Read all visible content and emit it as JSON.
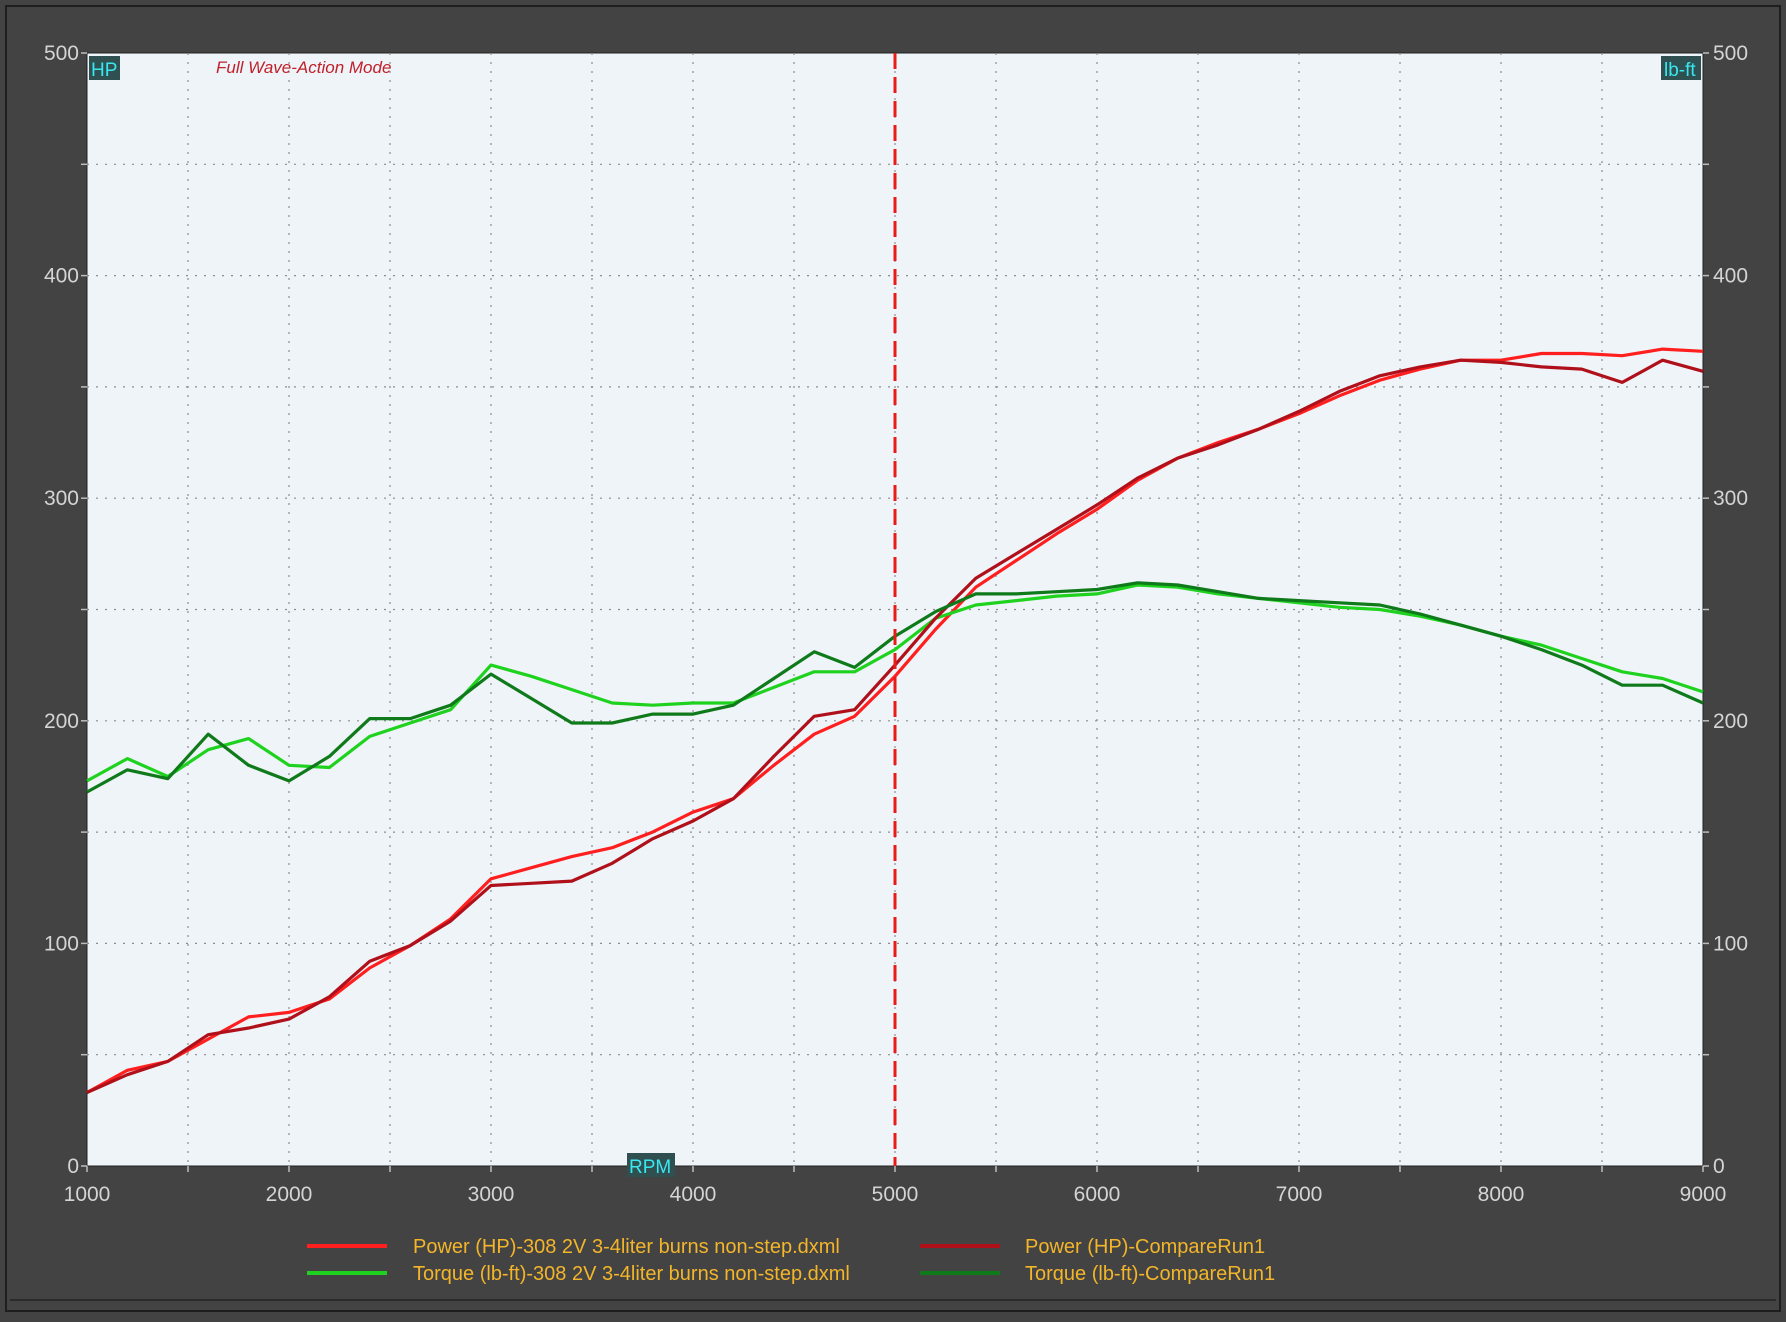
{
  "colors": {
    "background": "#434343",
    "plot_background": "#eff4f9",
    "axis_text": "#d4d4d4",
    "grid": "#8c8c8c",
    "mode_text": "#c0202a",
    "unit_box": "#2f4f50",
    "unit_text": "#39e7f0",
    "legend_text": "#f3b52a",
    "cursor": "#e81a1a"
  },
  "mode_label": "Full Wave-Action Mode",
  "chart_data": {
    "type": "line",
    "title": "",
    "xlabel": "RPM",
    "ylabel_left": "HP",
    "ylabel_right": "lb-ft",
    "xlim": [
      1000,
      9000
    ],
    "ylim": [
      0,
      500
    ],
    "x_ticks": [
      1000,
      2000,
      3000,
      4000,
      5000,
      6000,
      7000,
      8000,
      9000
    ],
    "y_ticks": [
      0,
      100,
      200,
      300,
      400,
      500
    ],
    "grid": true,
    "legend_position": "bottom",
    "cursor_rpm": 5000,
    "series": [
      {
        "name": "Power (HP)-308 2V 3-4liter burns non-step.dxml",
        "color": "#ff1f1f",
        "points": [
          [
            1000,
            33
          ],
          [
            1200,
            43
          ],
          [
            1400,
            47
          ],
          [
            1600,
            57
          ],
          [
            1800,
            67
          ],
          [
            2000,
            69
          ],
          [
            2200,
            75
          ],
          [
            2400,
            89
          ],
          [
            2600,
            99
          ],
          [
            2800,
            111
          ],
          [
            3000,
            129
          ],
          [
            3200,
            134
          ],
          [
            3400,
            139
          ],
          [
            3600,
            143
          ],
          [
            3800,
            150
          ],
          [
            4000,
            159
          ],
          [
            4200,
            165
          ],
          [
            4400,
            180
          ],
          [
            4600,
            194
          ],
          [
            4800,
            202
          ],
          [
            5000,
            220
          ],
          [
            5200,
            241
          ],
          [
            5400,
            260
          ],
          [
            5600,
            272
          ],
          [
            5800,
            284
          ],
          [
            6000,
            295
          ],
          [
            6200,
            308
          ],
          [
            6400,
            318
          ],
          [
            6600,
            325
          ],
          [
            6800,
            331
          ],
          [
            7000,
            338
          ],
          [
            7200,
            346
          ],
          [
            7400,
            353
          ],
          [
            7600,
            358
          ],
          [
            7800,
            362
          ],
          [
            8000,
            362
          ],
          [
            8200,
            365
          ],
          [
            8400,
            365
          ],
          [
            8600,
            364
          ],
          [
            8800,
            367
          ],
          [
            9000,
            366
          ]
        ]
      },
      {
        "name": "Torque (lb-ft)-308 2V 3-4liter burns non-step.dxml",
        "color": "#1ed21e",
        "points": [
          [
            1000,
            173
          ],
          [
            1200,
            183
          ],
          [
            1400,
            175
          ],
          [
            1600,
            187
          ],
          [
            1800,
            192
          ],
          [
            2000,
            180
          ],
          [
            2200,
            179
          ],
          [
            2400,
            193
          ],
          [
            2600,
            199
          ],
          [
            2800,
            205
          ],
          [
            3000,
            225
          ],
          [
            3200,
            220
          ],
          [
            3400,
            214
          ],
          [
            3600,
            208
          ],
          [
            3800,
            207
          ],
          [
            4000,
            208
          ],
          [
            4200,
            208
          ],
          [
            4400,
            215
          ],
          [
            4600,
            222
          ],
          [
            4800,
            222
          ],
          [
            5000,
            232
          ],
          [
            5200,
            246
          ],
          [
            5400,
            252
          ],
          [
            5600,
            254
          ],
          [
            5800,
            256
          ],
          [
            6000,
            257
          ],
          [
            6200,
            261
          ],
          [
            6400,
            260
          ],
          [
            6600,
            257
          ],
          [
            6800,
            255
          ],
          [
            7000,
            253
          ],
          [
            7200,
            251
          ],
          [
            7400,
            250
          ],
          [
            7600,
            247
          ],
          [
            7800,
            243
          ],
          [
            8000,
            238
          ],
          [
            8200,
            234
          ],
          [
            8400,
            228
          ],
          [
            8600,
            222
          ],
          [
            8800,
            219
          ],
          [
            9000,
            213
          ]
        ]
      },
      {
        "name": "Power (HP)-CompareRun1",
        "color": "#b0101a",
        "points": [
          [
            1000,
            33
          ],
          [
            1200,
            41
          ],
          [
            1400,
            47
          ],
          [
            1600,
            59
          ],
          [
            1800,
            62
          ],
          [
            2000,
            66
          ],
          [
            2200,
            76
          ],
          [
            2400,
            92
          ],
          [
            2600,
            99
          ],
          [
            2800,
            110
          ],
          [
            3000,
            126
          ],
          [
            3200,
            127
          ],
          [
            3400,
            128
          ],
          [
            3600,
            136
          ],
          [
            3800,
            147
          ],
          [
            4000,
            155
          ],
          [
            4200,
            165
          ],
          [
            4400,
            184
          ],
          [
            4600,
            202
          ],
          [
            4800,
            205
          ],
          [
            5000,
            225
          ],
          [
            5200,
            246
          ],
          [
            5400,
            264
          ],
          [
            5600,
            275
          ],
          [
            5800,
            286
          ],
          [
            6000,
            297
          ],
          [
            6200,
            309
          ],
          [
            6400,
            318
          ],
          [
            6600,
            324
          ],
          [
            6800,
            331
          ],
          [
            7000,
            339
          ],
          [
            7200,
            348
          ],
          [
            7400,
            355
          ],
          [
            7600,
            359
          ],
          [
            7800,
            362
          ],
          [
            8000,
            361
          ],
          [
            8200,
            359
          ],
          [
            8400,
            358
          ],
          [
            8600,
            352
          ],
          [
            8800,
            362
          ],
          [
            9000,
            357
          ]
        ]
      },
      {
        "name": "Torque (lb-ft)-CompareRun1",
        "color": "#0f7a1a",
        "points": [
          [
            1000,
            168
          ],
          [
            1200,
            178
          ],
          [
            1400,
            174
          ],
          [
            1600,
            194
          ],
          [
            1800,
            180
          ],
          [
            2000,
            173
          ],
          [
            2200,
            184
          ],
          [
            2400,
            201
          ],
          [
            2600,
            201
          ],
          [
            2800,
            207
          ],
          [
            3000,
            221
          ],
          [
            3200,
            210
          ],
          [
            3400,
            199
          ],
          [
            3600,
            199
          ],
          [
            3800,
            203
          ],
          [
            4000,
            203
          ],
          [
            4200,
            207
          ],
          [
            4400,
            219
          ],
          [
            4600,
            231
          ],
          [
            4800,
            224
          ],
          [
            5000,
            238
          ],
          [
            5200,
            249
          ],
          [
            5400,
            257
          ],
          [
            5600,
            257
          ],
          [
            5800,
            258
          ],
          [
            6000,
            259
          ],
          [
            6200,
            262
          ],
          [
            6400,
            261
          ],
          [
            6600,
            258
          ],
          [
            6800,
            255
          ],
          [
            7000,
            254
          ],
          [
            7200,
            253
          ],
          [
            7400,
            252
          ],
          [
            7600,
            248
          ],
          [
            7800,
            243
          ],
          [
            8000,
            238
          ],
          [
            8200,
            232
          ],
          [
            8400,
            225
          ],
          [
            8600,
            216
          ],
          [
            8800,
            216
          ],
          [
            9000,
            208
          ]
        ]
      }
    ]
  }
}
